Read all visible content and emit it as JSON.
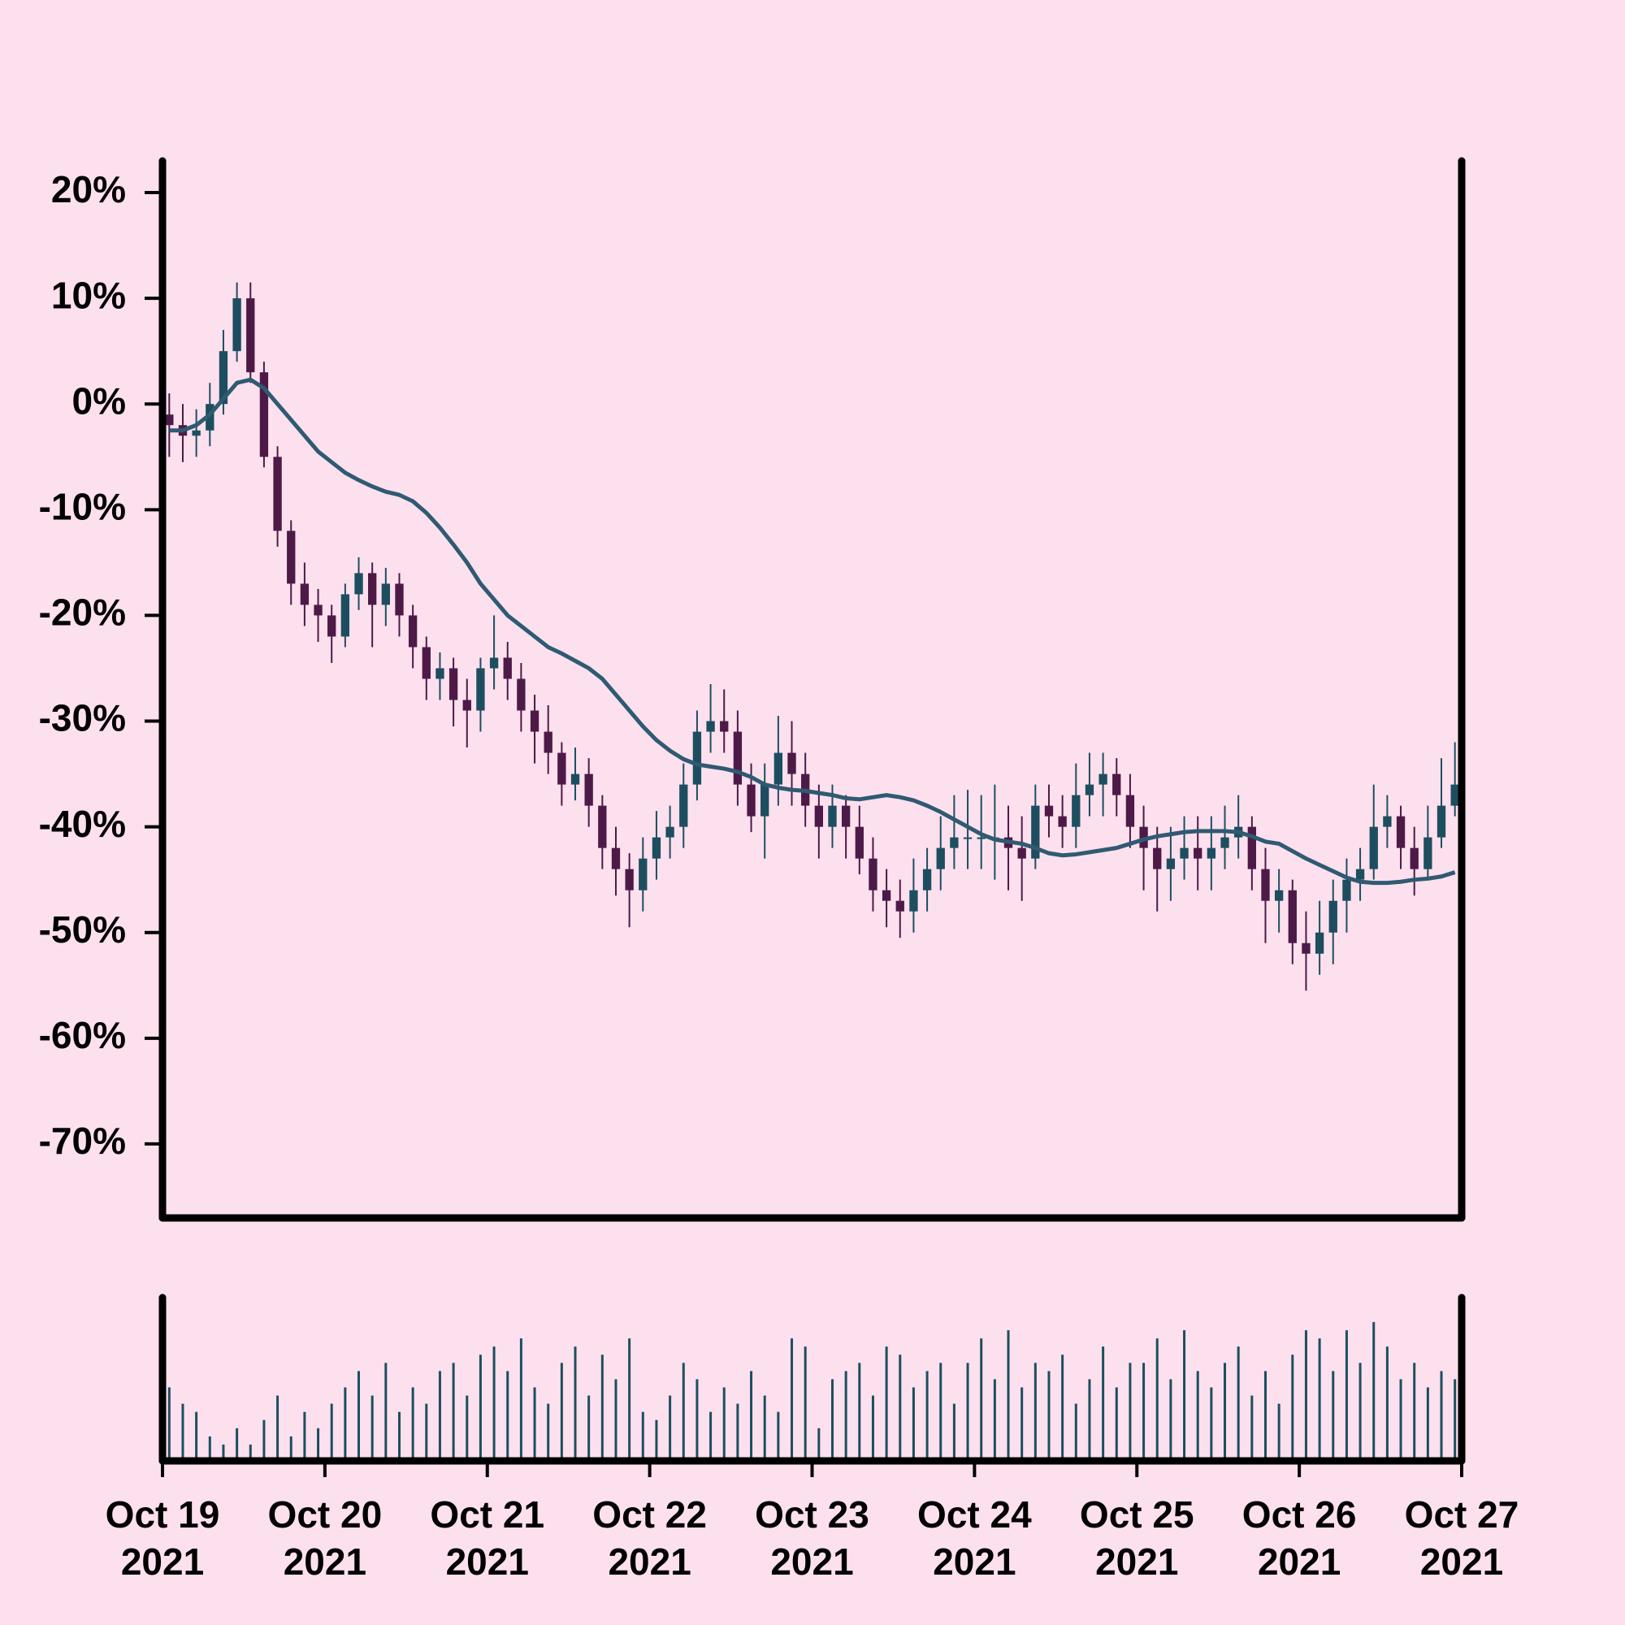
{
  "chart_data": {
    "type": "candlestick",
    "up_color": "#1d4e5f",
    "down_color": "#4d1a48",
    "open": [
      -1,
      -2,
      -3,
      -2.5,
      0,
      5,
      10,
      3,
      -5,
      -12,
      -17,
      -19,
      -20,
      -22,
      -18,
      -16,
      -19,
      -17,
      -20,
      -23,
      -26,
      -25,
      -28,
      -29,
      -25,
      -24,
      -26,
      -29,
      -31,
      -33,
      -36,
      -35,
      -38,
      -42,
      -44,
      -46,
      -43,
      -41,
      -40,
      -36,
      -31,
      -30,
      -31,
      -36,
      -39,
      -36,
      -33,
      -35,
      -38,
      -40,
      -38,
      -40,
      -43,
      -46,
      -47,
      -48,
      -46,
      -44,
      -42,
      -41,
      -41,
      -41,
      -41,
      -42,
      -43,
      -38,
      -39,
      -40,
      -37,
      -36,
      -35,
      -37,
      -40,
      -42,
      -44,
      -43,
      -42,
      -43,
      -42,
      -41,
      -40,
      -44,
      -47,
      -46,
      -51,
      -52,
      -50,
      -47,
      -45,
      -44,
      -40,
      -39,
      -42,
      -44,
      -41,
      -38
    ],
    "high": [
      1,
      0,
      -0.5,
      2,
      7,
      11.5,
      11.5,
      4,
      -4,
      -11,
      -15,
      -17.5,
      -19,
      -17,
      -14.5,
      -15,
      -15.5,
      -16,
      -19,
      -22,
      -23.5,
      -24,
      -26,
      -24,
      -20,
      -22.5,
      -24.5,
      -27.5,
      -28.5,
      -32,
      -32.5,
      -33.5,
      -37,
      -40,
      -42.5,
      -41,
      -38.5,
      -38,
      -34,
      -29,
      -26.5,
      -27,
      -29,
      -34,
      -34,
      -29.5,
      -30,
      -33,
      -36,
      -36,
      -37,
      -38,
      -41,
      -44,
      -45,
      -43,
      -42,
      -39,
      -37,
      -36.5,
      -37,
      -36,
      -38,
      -39,
      -36,
      -36,
      -37,
      -34,
      -33,
      -33,
      -33.5,
      -35,
      -38,
      -40,
      -40,
      -39,
      -39,
      -39,
      -38,
      -37,
      -39,
      -42,
      -44,
      -45,
      -48,
      -47,
      -45,
      -43,
      -42,
      -36,
      -37,
      -38,
      -40,
      -38,
      -33.5,
      -32
    ],
    "low": [
      -5,
      -5.5,
      -5,
      -4,
      -1,
      4,
      2,
      -6,
      -13.5,
      -19,
      -21,
      -22.5,
      -24.5,
      -23,
      -19.5,
      -23,
      -21,
      -22,
      -25,
      -28,
      -28,
      -30.5,
      -32.5,
      -31,
      -27,
      -28,
      -31,
      -34,
      -35,
      -38,
      -37.5,
      -40,
      -44,
      -46.5,
      -49.5,
      -48,
      -45,
      -43,
      -42,
      -37.5,
      -33,
      -33,
      -38,
      -40.5,
      -43,
      -38,
      -38,
      -40,
      -43,
      -42,
      -43,
      -44.5,
      -48,
      -49.5,
      -50.5,
      -50,
      -48,
      -46,
      -44,
      -44,
      -44,
      -45,
      -46,
      -47,
      -44,
      -41,
      -42,
      -42,
      -39,
      -39,
      -39,
      -42,
      -46,
      -48,
      -47,
      -45,
      -46,
      -46,
      -44,
      -43,
      -46,
      -51,
      -50,
      -53,
      -55.5,
      -54,
      -53,
      -50,
      -47,
      -45,
      -42,
      -44,
      -46.5,
      -45,
      -42,
      -39
    ],
    "close": [
      -2,
      -3,
      -2.5,
      0,
      5,
      10,
      3,
      -5,
      -12,
      -17,
      -19,
      -20,
      -22,
      -18,
      -16,
      -19,
      -17,
      -20,
      -23,
      -26,
      -25,
      -28,
      -29,
      -25,
      -24,
      -26,
      -29,
      -31,
      -33,
      -36,
      -35,
      -38,
      -42,
      -44,
      -46,
      -43,
      -41,
      -40,
      -36,
      -31,
      -30,
      -31,
      -36,
      -39,
      -36,
      -33,
      -35,
      -38,
      -40,
      -38,
      -40,
      -43,
      -46,
      -47,
      -48,
      -46,
      -44,
      -42,
      -41,
      -41,
      -41,
      -41,
      -42,
      -43,
      -38,
      -39,
      -40,
      -37,
      -36,
      -35,
      -37,
      -40,
      -42,
      -44,
      -43,
      -42,
      -43,
      -42,
      -41,
      -40,
      -44,
      -47,
      -46,
      -51,
      -52,
      -50,
      -47,
      -45,
      -44,
      -40,
      -39,
      -42,
      -44,
      -41,
      -38,
      -36
    ],
    "moving_average": {
      "color": "#2f5a72",
      "values": [
        -2.5,
        -2.5,
        -2,
        -1,
        0.5,
        2,
        2.3,
        1.5,
        0,
        -1.5,
        -3,
        -4.5,
        -5.5,
        -6.5,
        -7.2,
        -7.8,
        -8.3,
        -8.6,
        -9.2,
        -10.3,
        -11.7,
        -13.3,
        -15,
        -17,
        -18.5,
        -20,
        -21,
        -22,
        -23,
        -23.6,
        -24.3,
        -25,
        -26,
        -27.5,
        -29,
        -30.5,
        -31.8,
        -32.8,
        -33.6,
        -34.1,
        -34.3,
        -34.5,
        -34.8,
        -35.3,
        -36,
        -36.3,
        -36.5,
        -36.6,
        -36.8,
        -37,
        -37.3,
        -37.4,
        -37.2,
        -37,
        -37.2,
        -37.5,
        -38,
        -38.6,
        -39.3,
        -40,
        -40.7,
        -41.2,
        -41.4,
        -41.6,
        -42,
        -42.5,
        -42.7,
        -42.6,
        -42.4,
        -42.2,
        -42,
        -41.6,
        -41.2,
        -40.9,
        -40.7,
        -40.5,
        -40.4,
        -40.4,
        -40.4,
        -40.5,
        -40.9,
        -41.4,
        -41.6,
        -42.3,
        -43,
        -43.6,
        -44.2,
        -44.8,
        -45.2,
        -45.3,
        -45.3,
        -45.2,
        -45,
        -44.9,
        -44.7,
        -44.3
      ]
    },
    "volume": {
      "color": "#1d4e5f",
      "ylim": [
        0,
        100
      ],
      "values": [
        45,
        35,
        30,
        15,
        10,
        20,
        10,
        25,
        40,
        15,
        30,
        20,
        35,
        45,
        55,
        40,
        60,
        30,
        45,
        35,
        55,
        60,
        40,
        65,
        70,
        55,
        75,
        45,
        35,
        60,
        70,
        40,
        65,
        50,
        75,
        30,
        25,
        40,
        60,
        50,
        30,
        45,
        35,
        55,
        40,
        30,
        75,
        70,
        20,
        50,
        55,
        60,
        40,
        70,
        65,
        45,
        55,
        60,
        35,
        60,
        75,
        50,
        80,
        45,
        60,
        55,
        65,
        35,
        50,
        70,
        45,
        60,
        60,
        75,
        50,
        80,
        55,
        45,
        60,
        70,
        40,
        55,
        35,
        65,
        80,
        75,
        55,
        80,
        60,
        85,
        70,
        50,
        60,
        45,
        55,
        50
      ]
    },
    "ylim": [
      -77,
      23
    ],
    "yticks": [
      {
        "value": 20,
        "label": "20%"
      },
      {
        "value": 10,
        "label": "10%"
      },
      {
        "value": 0,
        "label": "0%"
      },
      {
        "value": -10,
        "label": "-10%"
      },
      {
        "value": -20,
        "label": "-20%"
      },
      {
        "value": -30,
        "label": "-30%"
      },
      {
        "value": -40,
        "label": "-40%"
      },
      {
        "value": -50,
        "label": "-50%"
      },
      {
        "value": -60,
        "label": "-60%"
      },
      {
        "value": -70,
        "label": "-70%"
      }
    ],
    "xlim": [
      0,
      8
    ],
    "xticks": [
      {
        "value": 0,
        "label": "Oct 19 2021"
      },
      {
        "value": 1,
        "label": "Oct 20 2021"
      },
      {
        "value": 2,
        "label": "Oct 21 2021"
      },
      {
        "value": 3,
        "label": "Oct 22 2021"
      },
      {
        "value": 4,
        "label": "Oct 23 2021"
      },
      {
        "value": 5,
        "label": "Oct 24 2021"
      },
      {
        "value": 6,
        "label": "Oct 25 2021"
      },
      {
        "value": 7,
        "label": "Oct 26 2021"
      },
      {
        "value": 8,
        "label": "Oct 27 2021"
      }
    ]
  }
}
